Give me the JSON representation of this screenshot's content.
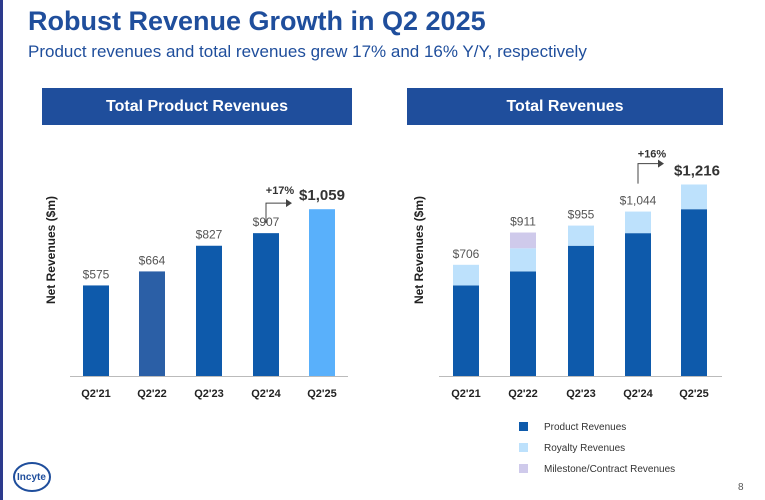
{
  "title": "Robust Revenue Growth in Q2 2025",
  "subtitle": "Product revenues and total revenues grew 17% and 16% Y/Y, respectively",
  "page_number": "8",
  "logo_text": "Incyte",
  "colors": {
    "header_bg": "#1f4e9c",
    "product": "#0e5aab",
    "product_q2_22": "#2b5fa6",
    "product_highlight": "#59b0fb",
    "royalty": "#bde1fc",
    "milestone": "#cfcaeb"
  },
  "chart_data": [
    {
      "type": "bar",
      "title": "Total Product Revenues",
      "ylabel": "Net Revenues ($m)",
      "categories": [
        "Q2'21",
        "Q2'22",
        "Q2'23",
        "Q2'24",
        "Q2'25"
      ],
      "values": [
        575,
        664,
        827,
        907,
        1059
      ],
      "value_labels": [
        "$575",
        "$664",
        "$827",
        "$907",
        "$1,059"
      ],
      "growth_annotation": "+17%",
      "highlight_category": "Q2'25"
    },
    {
      "type": "bar",
      "stacked": true,
      "title": "Total Revenues",
      "ylabel": "Net Revenues ($m)",
      "categories": [
        "Q2'21",
        "Q2'22",
        "Q2'23",
        "Q2'24",
        "Q2'25"
      ],
      "series": [
        {
          "name": "Product Revenues",
          "values": [
            575,
            664,
            827,
            907,
            1059
          ]
        },
        {
          "name": "Royalty Revenues",
          "values": [
            131,
            147,
            128,
            137,
            157
          ]
        },
        {
          "name": "Milestone/Contract Revenues",
          "values": [
            0,
            100,
            0,
            0,
            0
          ]
        }
      ],
      "totals": [
        706,
        911,
        955,
        1044,
        1216
      ],
      "total_labels": [
        "$706",
        "$911",
        "$955",
        "$1,044",
        "$1,216"
      ],
      "growth_annotation": "+16%",
      "legend_position": "bottom"
    }
  ]
}
